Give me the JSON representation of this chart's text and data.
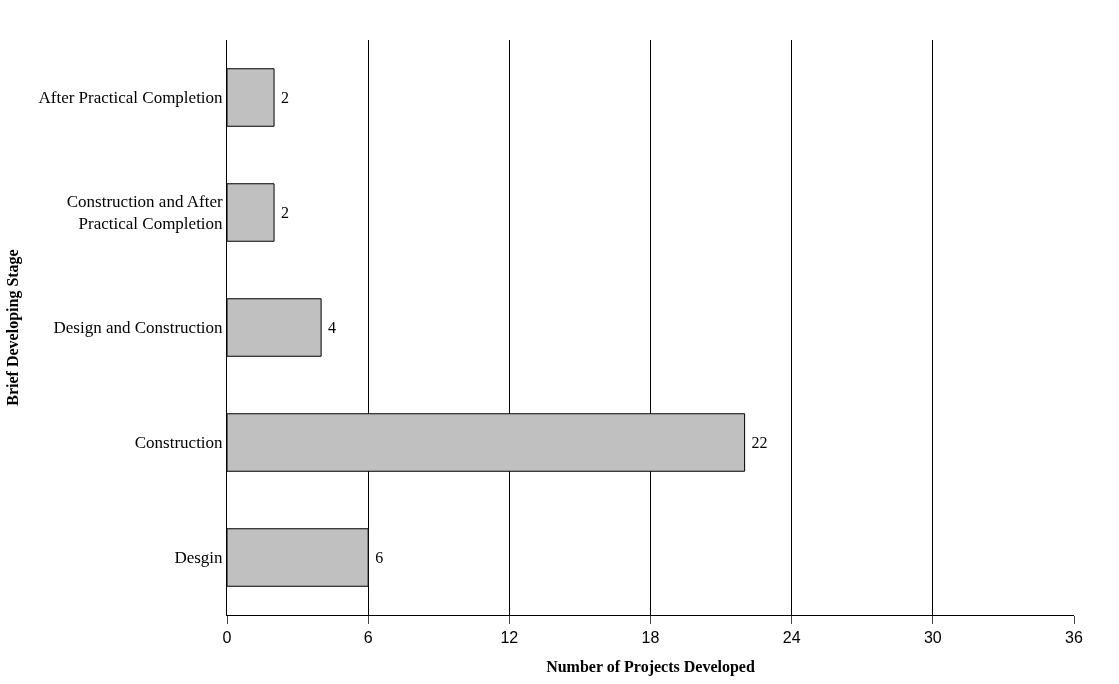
{
  "chart_data": {
    "type": "bar",
    "orientation": "horizontal",
    "categories": [
      "After Practical Completion",
      "Construction and After Practical Completion",
      "Design and Construction",
      "Construction",
      "Desgin"
    ],
    "values": [
      2,
      2,
      4,
      22,
      6
    ],
    "color": "#c0c0c0",
    "xlabel": "Number of Projects Developed",
    "ylabel": "Brief Developing Stage",
    "xlim": [
      0,
      36
    ],
    "xticks": [
      0,
      6,
      12,
      18,
      24,
      30,
      36
    ],
    "grid": "x",
    "data_labels": true
  }
}
